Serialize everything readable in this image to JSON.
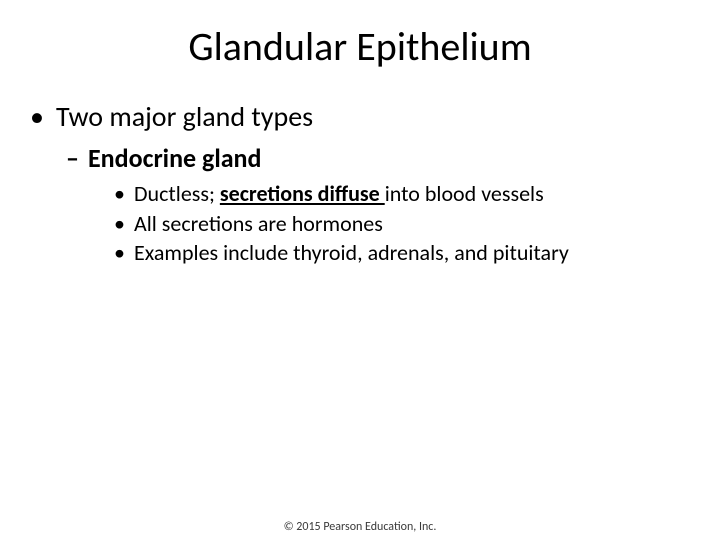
{
  "slide": {
    "title": "Glandular Epithelium",
    "level1": {
      "bullet": "•",
      "text": "Two major gland types"
    },
    "level2": {
      "dash": "–",
      "text": "Endocrine gland"
    },
    "level3": [
      {
        "bullet": "•",
        "plain1": "Ductless; ",
        "emph": "secretions diffuse ",
        "plain2": "into blood vessels"
      },
      {
        "bullet": "•",
        "plain1": "All secretions are hormones",
        "emph": "",
        "plain2": ""
      },
      {
        "bullet": "•",
        "plain1": "Examples include thyroid, adrenals, and pituitary",
        "emph": "",
        "plain2": ""
      }
    ],
    "footer": "© 2015 Pearson Education, Inc."
  },
  "style": {
    "background_color": "#ffffff",
    "text_color": "#000000",
    "title_fontsize": 40,
    "lvl1_fontsize": 28,
    "lvl2_fontsize": 26,
    "lvl3_fontsize": 22,
    "footer_fontsize": 12,
    "footer_color": "#3a3a3a",
    "font_family": "Calibri"
  }
}
